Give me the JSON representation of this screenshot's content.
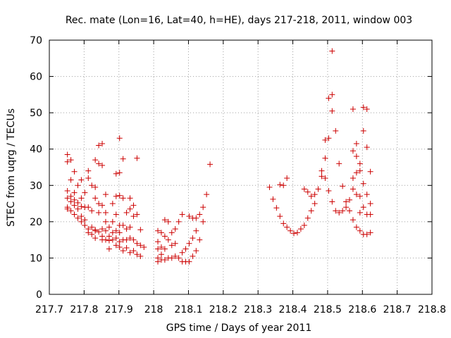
{
  "chart_data": {
    "type": "scatter",
    "title": "Rec. mate (Lon=16, Lat=40, h=HE), days 217-218, 2011, window 003",
    "xlabel": "GPS time / Days of year 2011",
    "ylabel": "STEC from uqrg / TECUs",
    "xlim": [
      217.7,
      218.8
    ],
    "ylim": [
      0,
      70
    ],
    "xticks": [
      217.7,
      217.8,
      217.9,
      218.0,
      218.1,
      218.2,
      218.3,
      218.4,
      218.5,
      218.6,
      218.7,
      218.8
    ],
    "xtick_labels": [
      "217.7",
      "217.8",
      "217.9",
      "218",
      "218.1",
      "218.2",
      "218.3",
      "218.4",
      "218.5",
      "218.6",
      "218.7",
      "218.8"
    ],
    "yticks": [
      0,
      10,
      20,
      30,
      40,
      50,
      60,
      70
    ],
    "ytick_labels": [
      "0",
      "10",
      "20",
      "30",
      "40",
      "50",
      "60",
      "70"
    ],
    "grid": true,
    "marker": "plus",
    "color": "#cc0000",
    "series": [
      {
        "points": [
          [
            217.752,
            38.5
          ],
          [
            217.752,
            36.5
          ],
          [
            217.752,
            28.5
          ],
          [
            217.752,
            26.5
          ],
          [
            217.752,
            24.0
          ],
          [
            217.752,
            23.5
          ],
          [
            217.762,
            37.0
          ],
          [
            217.762,
            31.5
          ],
          [
            217.762,
            27.0
          ],
          [
            217.762,
            25.5
          ],
          [
            217.762,
            23.0
          ],
          [
            217.772,
            33.8
          ],
          [
            217.772,
            28.0
          ],
          [
            217.772,
            26.0
          ],
          [
            217.772,
            24.5
          ],
          [
            217.772,
            22.0
          ],
          [
            217.782,
            30.0
          ],
          [
            217.782,
            25.2
          ],
          [
            217.782,
            23.5
          ],
          [
            217.782,
            21.0
          ],
          [
            217.792,
            31.5
          ],
          [
            217.792,
            26.5
          ],
          [
            217.792,
            24.2
          ],
          [
            217.792,
            21.5
          ],
          [
            217.792,
            20.0
          ],
          [
            217.802,
            28.0
          ],
          [
            217.802,
            24.0
          ],
          [
            217.802,
            20.5
          ],
          [
            217.802,
            19.0
          ],
          [
            217.812,
            34.0
          ],
          [
            217.812,
            32.0
          ],
          [
            217.812,
            24.0
          ],
          [
            217.812,
            18.0
          ],
          [
            217.812,
            17.0
          ],
          [
            217.822,
            30.0
          ],
          [
            217.822,
            23.0
          ],
          [
            217.822,
            18.5
          ],
          [
            217.822,
            16.5
          ],
          [
            217.832,
            37.0
          ],
          [
            217.832,
            29.5
          ],
          [
            217.832,
            26.5
          ],
          [
            217.832,
            17.5
          ],
          [
            217.832,
            15.5
          ],
          [
            217.832,
            17.8
          ],
          [
            217.842,
            41.0
          ],
          [
            217.842,
            36.0
          ],
          [
            217.842,
            25.0
          ],
          [
            217.842,
            22.5
          ],
          [
            217.842,
            17.2
          ],
          [
            217.852,
            41.5
          ],
          [
            217.852,
            35.5
          ],
          [
            217.852,
            24.5
          ],
          [
            217.852,
            18.0
          ],
          [
            217.852,
            16.0
          ],
          [
            217.852,
            15.0
          ],
          [
            217.862,
            27.5
          ],
          [
            217.862,
            22.5
          ],
          [
            217.862,
            20.0
          ],
          [
            217.862,
            17.5
          ],
          [
            217.862,
            15.0
          ],
          [
            217.872,
            18.5
          ],
          [
            217.872,
            16.0
          ],
          [
            217.872,
            14.8
          ],
          [
            217.872,
            12.5
          ],
          [
            217.882,
            25.0
          ],
          [
            217.882,
            20.0
          ],
          [
            217.882,
            17.0
          ],
          [
            217.882,
            15.0
          ],
          [
            217.892,
            33.2
          ],
          [
            217.892,
            27.0
          ],
          [
            217.892,
            22.0
          ],
          [
            217.892,
            17.5
          ],
          [
            217.892,
            15.5
          ],
          [
            217.892,
            13.5
          ],
          [
            217.902,
            43.0
          ],
          [
            217.902,
            33.5
          ],
          [
            217.902,
            27.2
          ],
          [
            217.902,
            19.0
          ],
          [
            217.902,
            17.0
          ],
          [
            217.902,
            14.5
          ],
          [
            217.902,
            13.0
          ],
          [
            217.912,
            37.3
          ],
          [
            217.912,
            26.5
          ],
          [
            217.912,
            19.0
          ],
          [
            217.912,
            15.0
          ],
          [
            217.912,
            12.0
          ],
          [
            217.922,
            22.5
          ],
          [
            217.922,
            18.0
          ],
          [
            217.922,
            15.0
          ],
          [
            217.922,
            12.8
          ],
          [
            217.932,
            26.5
          ],
          [
            217.932,
            23.5
          ],
          [
            217.932,
            18.5
          ],
          [
            217.932,
            15.5
          ],
          [
            217.932,
            11.5
          ],
          [
            217.942,
            24.5
          ],
          [
            217.942,
            21.5
          ],
          [
            217.942,
            15.0
          ],
          [
            217.942,
            12.0
          ],
          [
            217.952,
            37.5
          ],
          [
            217.952,
            22.0
          ],
          [
            217.952,
            14.0
          ],
          [
            217.952,
            11.0
          ],
          [
            217.962,
            17.8
          ],
          [
            217.962,
            13.5
          ],
          [
            217.962,
            10.5
          ],
          [
            217.972,
            13.0
          ],
          [
            218.012,
            17.5
          ],
          [
            218.012,
            14.5
          ],
          [
            218.012,
            12.5
          ],
          [
            218.012,
            10.0
          ],
          [
            218.012,
            9.0
          ],
          [
            218.022,
            17.0
          ],
          [
            218.022,
            13.0
          ],
          [
            218.022,
            11.0
          ],
          [
            218.022,
            9.5
          ],
          [
            218.032,
            20.5
          ],
          [
            218.032,
            16.0
          ],
          [
            218.032,
            12.5
          ],
          [
            218.032,
            9.5
          ],
          [
            218.042,
            20.0
          ],
          [
            218.042,
            15.0
          ],
          [
            218.042,
            10.0
          ],
          [
            218.052,
            17.0
          ],
          [
            218.052,
            13.5
          ],
          [
            218.052,
            10.0
          ],
          [
            218.062,
            18.0
          ],
          [
            218.062,
            14.0
          ],
          [
            218.062,
            10.5
          ],
          [
            218.072,
            20.0
          ],
          [
            218.072,
            10.0
          ],
          [
            218.082,
            22.0
          ],
          [
            218.082,
            11.5
          ],
          [
            218.082,
            9.0
          ],
          [
            218.092,
            12.5
          ],
          [
            218.092,
            9.0
          ],
          [
            218.102,
            21.5
          ],
          [
            218.102,
            14.0
          ],
          [
            218.102,
            9.0
          ],
          [
            218.112,
            21.0
          ],
          [
            218.112,
            15.5
          ],
          [
            218.112,
            10.5
          ],
          [
            218.122,
            21.0
          ],
          [
            218.122,
            17.5
          ],
          [
            218.122,
            12.0
          ],
          [
            218.132,
            22.0
          ],
          [
            218.132,
            15.0
          ],
          [
            218.142,
            24.0
          ],
          [
            218.142,
            20.0
          ],
          [
            218.152,
            27.5
          ],
          [
            218.162,
            35.8
          ],
          [
            218.333,
            29.5
          ],
          [
            218.343,
            26.2
          ],
          [
            218.353,
            23.8
          ],
          [
            218.363,
            30.2
          ],
          [
            218.363,
            21.5
          ],
          [
            218.373,
            30.0
          ],
          [
            218.373,
            19.5
          ],
          [
            218.383,
            32.0
          ],
          [
            218.383,
            18.5
          ],
          [
            218.393,
            17.5
          ],
          [
            218.403,
            16.8
          ],
          [
            218.413,
            17.0
          ],
          [
            218.423,
            18.0
          ],
          [
            218.433,
            29.0
          ],
          [
            218.433,
            19.0
          ],
          [
            218.443,
            28.2
          ],
          [
            218.443,
            21.0
          ],
          [
            218.453,
            27.0
          ],
          [
            218.453,
            23.0
          ],
          [
            218.463,
            27.5
          ],
          [
            218.463,
            25.0
          ],
          [
            218.473,
            29.0
          ],
          [
            218.483,
            34.0
          ],
          [
            218.483,
            32.5
          ],
          [
            218.493,
            42.5
          ],
          [
            218.493,
            37.5
          ],
          [
            218.493,
            32.0
          ],
          [
            218.503,
            54.0
          ],
          [
            218.503,
            43.0
          ],
          [
            218.503,
            28.5
          ],
          [
            218.513,
            67.0
          ],
          [
            218.513,
            55.0
          ],
          [
            218.513,
            50.5
          ],
          [
            218.513,
            25.5
          ],
          [
            218.523,
            45.0
          ],
          [
            218.523,
            23.0
          ],
          [
            218.533,
            36.0
          ],
          [
            218.533,
            22.5
          ],
          [
            218.543,
            29.8
          ],
          [
            218.543,
            23.0
          ],
          [
            218.553,
            25.5
          ],
          [
            218.553,
            24.0
          ],
          [
            218.563,
            26.0
          ],
          [
            218.563,
            23.0
          ],
          [
            218.573,
            51.0
          ],
          [
            218.573,
            39.5
          ],
          [
            218.573,
            32.0
          ],
          [
            218.573,
            29.0
          ],
          [
            218.573,
            20.5
          ],
          [
            218.583,
            41.5
          ],
          [
            218.583,
            38.0
          ],
          [
            218.583,
            33.5
          ],
          [
            218.583,
            27.5
          ],
          [
            218.583,
            18.5
          ],
          [
            218.593,
            36.0
          ],
          [
            218.593,
            34.0
          ],
          [
            218.593,
            27.0
          ],
          [
            218.593,
            22.5
          ],
          [
            218.593,
            17.5
          ],
          [
            218.603,
            51.5
          ],
          [
            218.603,
            45.0
          ],
          [
            218.603,
            30.5
          ],
          [
            218.603,
            24.0
          ],
          [
            218.603,
            16.5
          ],
          [
            218.613,
            51.0
          ],
          [
            218.613,
            40.5
          ],
          [
            218.613,
            27.5
          ],
          [
            218.613,
            22.0
          ],
          [
            218.613,
            16.5
          ],
          [
            218.623,
            33.8
          ],
          [
            218.623,
            25.0
          ],
          [
            218.623,
            22.0
          ],
          [
            218.623,
            17.0
          ]
        ]
      }
    ]
  }
}
